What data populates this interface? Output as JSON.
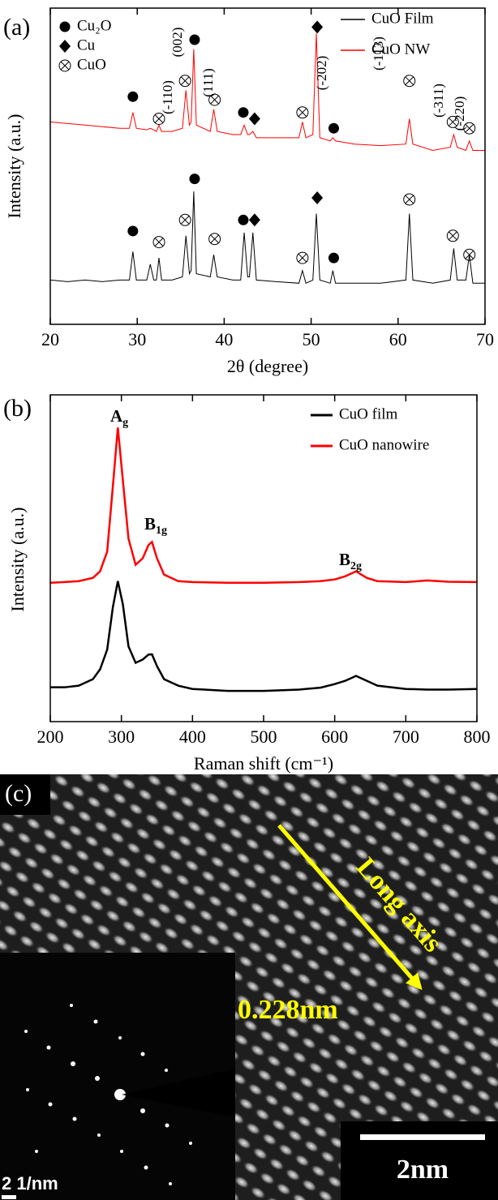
{
  "chart_data": [
    {
      "type": "line",
      "panel_label": "(a)",
      "x_label": "2θ (degree)",
      "y_label": "Intensity (a.u.)",
      "xlim": [
        20,
        70
      ],
      "xticks": [
        20,
        30,
        40,
        50,
        60,
        70
      ],
      "ylim": [
        0,
        100
      ],
      "x": [
        20,
        22,
        24,
        26,
        28,
        29.1,
        29.5,
        29.9,
        31.1,
        31.5,
        31.9,
        32.2,
        32.5,
        32.8,
        34,
        35.2,
        35.6,
        36.0,
        36.2,
        36.5,
        36.8,
        38.4,
        38.8,
        39.2,
        41,
        41.9,
        42.3,
        42.7,
        42.9,
        43.3,
        43.7,
        46,
        48.6,
        49,
        49.4,
        50.2,
        50.6,
        51.0,
        52.2,
        52.5,
        52.8,
        55,
        58,
        60.9,
        61.3,
        61.7,
        64,
        66.0,
        66.4,
        66.8,
        67.8,
        68.2,
        68.6,
        70
      ],
      "series": [
        {
          "name": "CuO Film",
          "color": "#000000",
          "values": [
            14,
            13.5,
            14,
            13.5,
            14,
            14,
            23,
            14,
            14,
            19,
            14,
            14,
            21,
            14,
            14,
            15,
            28,
            16,
            17,
            42,
            16,
            15,
            22,
            15,
            14,
            14,
            29,
            15,
            15,
            29,
            14,
            13.5,
            13,
            17,
            13,
            14,
            35,
            14,
            13,
            17,
            13,
            13,
            13,
            14,
            35,
            14,
            13,
            14,
            24,
            14,
            14,
            22,
            13,
            13
          ]
        },
        {
          "name": "CuO NW",
          "color": "#ff0000",
          "values": [
            64,
            63.5,
            63,
            62.5,
            62,
            62,
            67,
            62,
            61.5,
            62,
            61.5,
            61,
            63,
            61,
            61,
            62,
            74,
            63,
            64,
            87,
            63,
            61,
            68,
            61,
            60,
            60,
            63,
            60,
            60,
            61,
            59,
            59,
            59,
            64,
            59,
            60,
            92,
            59,
            58,
            59,
            58,
            57,
            56.5,
            57,
            65,
            57,
            55,
            56,
            60,
            56,
            55,
            58,
            55,
            55
          ]
        }
      ],
      "marker_legend": [
        {
          "label": "Cu₂O",
          "marker": "circle"
        },
        {
          "label": "Cu",
          "marker": "diamond"
        },
        {
          "label": "CuO",
          "marker": "otimes"
        }
      ],
      "markers": [
        {
          "x": 29.5,
          "y": 72,
          "marker": "circle"
        },
        {
          "x": 32.5,
          "y": 65,
          "marker": "otimes"
        },
        {
          "x": 35.5,
          "y": 77,
          "marker": "otimes"
        },
        {
          "x": 36.6,
          "y": 90,
          "marker": "circle"
        },
        {
          "x": 38.9,
          "y": 71,
          "marker": "otimes"
        },
        {
          "x": 42.2,
          "y": 67,
          "marker": "circle"
        },
        {
          "x": 43.5,
          "y": 65,
          "marker": "diamond"
        },
        {
          "x": 49,
          "y": 67,
          "marker": "otimes"
        },
        {
          "x": 50.7,
          "y": 94,
          "marker": "diamond"
        },
        {
          "x": 52.6,
          "y": 62,
          "marker": "circle"
        },
        {
          "x": 61.3,
          "y": 77,
          "marker": "otimes"
        },
        {
          "x": 66.3,
          "y": 64,
          "marker": "otimes"
        },
        {
          "x": 68.2,
          "y": 62,
          "marker": "otimes"
        },
        {
          "x": 29.5,
          "y": 29.5,
          "marker": "circle"
        },
        {
          "x": 32.5,
          "y": 26,
          "marker": "otimes"
        },
        {
          "x": 35.5,
          "y": 33,
          "marker": "otimes"
        },
        {
          "x": 36.6,
          "y": 46,
          "marker": "circle"
        },
        {
          "x": 38.9,
          "y": 27,
          "marker": "otimes"
        },
        {
          "x": 42.2,
          "y": 33,
          "marker": "circle"
        },
        {
          "x": 43.5,
          "y": 33,
          "marker": "diamond"
        },
        {
          "x": 49,
          "y": 21,
          "marker": "otimes"
        },
        {
          "x": 50.7,
          "y": 40,
          "marker": "diamond"
        },
        {
          "x": 52.6,
          "y": 21,
          "marker": "circle"
        },
        {
          "x": 61.3,
          "y": 39.5,
          "marker": "otimes"
        },
        {
          "x": 66.3,
          "y": 28,
          "marker": "otimes"
        },
        {
          "x": 68.2,
          "y": 22,
          "marker": "otimes"
        }
      ],
      "annotations": [
        "(-110)",
        "(002)",
        "(111)",
        "(-202)",
        "(-113)",
        "(-311)",
        "(-220)"
      ]
    },
    {
      "type": "line",
      "panel_label": "(b)",
      "x_label": "Raman shift (cm⁻¹)",
      "y_label": "Intensity (a.u.)",
      "xlim": [
        200,
        800
      ],
      "xticks": [
        200,
        300,
        400,
        500,
        600,
        700,
        800
      ],
      "ylim": [
        0,
        100
      ],
      "x": [
        200,
        220,
        240,
        260,
        270,
        280,
        288,
        295,
        302,
        310,
        320,
        330,
        338,
        343,
        350,
        360,
        380,
        400,
        450,
        500,
        550,
        580,
        600,
        615,
        630,
        645,
        660,
        700,
        730,
        760,
        800
      ],
      "series": [
        {
          "name": "CuO film",
          "color": "#000000",
          "values": [
            10.5,
            10.5,
            11,
            13,
            16,
            22,
            35,
            43,
            36,
            23,
            18,
            19,
            20.5,
            20.6,
            17,
            13,
            11,
            10,
            9.4,
            9.4,
            9.8,
            10.4,
            11.5,
            12.5,
            14,
            12.5,
            11,
            10,
            9.8,
            9.8,
            10
          ]
        },
        {
          "name": "CuO nanowire",
          "color": "#ff0000",
          "values": [
            42.5,
            42.7,
            43,
            44,
            46,
            52,
            72,
            90,
            74,
            56,
            48,
            50,
            54,
            55,
            50,
            45,
            43,
            42.7,
            42.5,
            42.5,
            42.7,
            43,
            43.5,
            44.5,
            46,
            44,
            43,
            42.7,
            43.2,
            42.8,
            42.7
          ]
        }
      ],
      "annotations": [
        {
          "text": "A",
          "sub": "g"
        },
        {
          "text": "B",
          "sub": "1g"
        },
        {
          "text": "B",
          "sub": "2g"
        }
      ]
    }
  ],
  "image": {
    "panel_label": "(c)",
    "spacing_label": "0.228nm",
    "axis_label": "Long axis",
    "inset_scale": "2 1/nm",
    "scale_bar": "2nm"
  }
}
